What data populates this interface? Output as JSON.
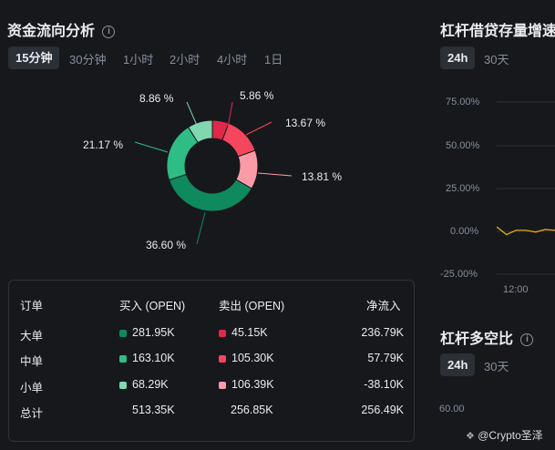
{
  "colors": {
    "background": "#17181c",
    "buy_large": "#0e8a5e",
    "buy_medium": "#2ebd85",
    "buy_small": "#7fd8b0",
    "sell_large": "#e0294a",
    "sell_medium": "#f6465d",
    "sell_small": "#fc9ba8",
    "line": "#f0b90b"
  },
  "left": {
    "title": "资金流向分析",
    "info_icon": "info-icon",
    "tabs": [
      {
        "label": "15分钟",
        "active": true
      },
      {
        "label": "30分钟",
        "active": false
      },
      {
        "label": "1小时",
        "active": false
      },
      {
        "label": "2小时",
        "active": false
      },
      {
        "label": "4小时",
        "active": false
      },
      {
        "label": "1日",
        "active": false
      }
    ],
    "donut_labels": {
      "sell_large": "5.86 %",
      "sell_medium": "13.67 %",
      "sell_small": "13.81 %",
      "buy_large": "36.60 %",
      "buy_medium": "21.17 %",
      "buy_small": "8.86 %"
    },
    "chart_data": {
      "type": "pie",
      "style": "donut",
      "slices": [
        {
          "name": "卖出 大单",
          "value": 5.86,
          "color": "#e0294a"
        },
        {
          "name": "卖出 中单",
          "value": 13.67,
          "color": "#f6465d"
        },
        {
          "name": "卖出 小单",
          "value": 13.81,
          "color": "#fc9ba8"
        },
        {
          "name": "买入 大单",
          "value": 36.6,
          "color": "#0e8a5e"
        },
        {
          "name": "买入 中单",
          "value": 21.17,
          "color": "#2ebd85"
        },
        {
          "name": "买入 小单",
          "value": 8.86,
          "color": "#7fd8b0"
        }
      ]
    },
    "table": {
      "headers": [
        "订单",
        "买入 (OPEN)",
        "卖出 (OPEN)",
        "净流入"
      ],
      "rows": [
        {
          "name": "大单",
          "buy": "281.95K",
          "sell": "45.15K",
          "net": "236.79K"
        },
        {
          "name": "中单",
          "buy": "163.10K",
          "sell": "105.30K",
          "net": "57.79K"
        },
        {
          "name": "小单",
          "buy": "68.29K",
          "sell": "106.39K",
          "net": "-38.10K"
        },
        {
          "name": "总计",
          "buy": "513.35K",
          "sell": "256.85K",
          "net": "256.49K"
        }
      ]
    }
  },
  "right": {
    "top": {
      "title": "杠杆借贷存量增速",
      "tabs": [
        {
          "label": "24h",
          "active": true
        },
        {
          "label": "30天",
          "active": false
        }
      ],
      "y_ticks": [
        "75.00%",
        "50.00%",
        "25.00%",
        "0.00%",
        "-25.00%"
      ],
      "x_ticks": [
        "12:00"
      ],
      "chart_data": {
        "type": "line",
        "x": [
          "",
          "",
          "",
          "",
          "",
          "",
          ""
        ],
        "series": [
          {
            "values": [
              2.5,
              -2.0,
              0.5,
              0.5,
              -0.5,
              1.0,
              0.5
            ]
          }
        ],
        "ylim": [
          -25,
          75
        ]
      }
    },
    "bottom": {
      "title": "杠杆多空比",
      "info_icon": "info-icon",
      "tabs": [
        {
          "label": "24h",
          "active": true
        },
        {
          "label": "30天",
          "active": false
        }
      ],
      "y_ticks": [
        "60.00"
      ]
    }
  },
  "watermark": "@Crypto圣泽"
}
